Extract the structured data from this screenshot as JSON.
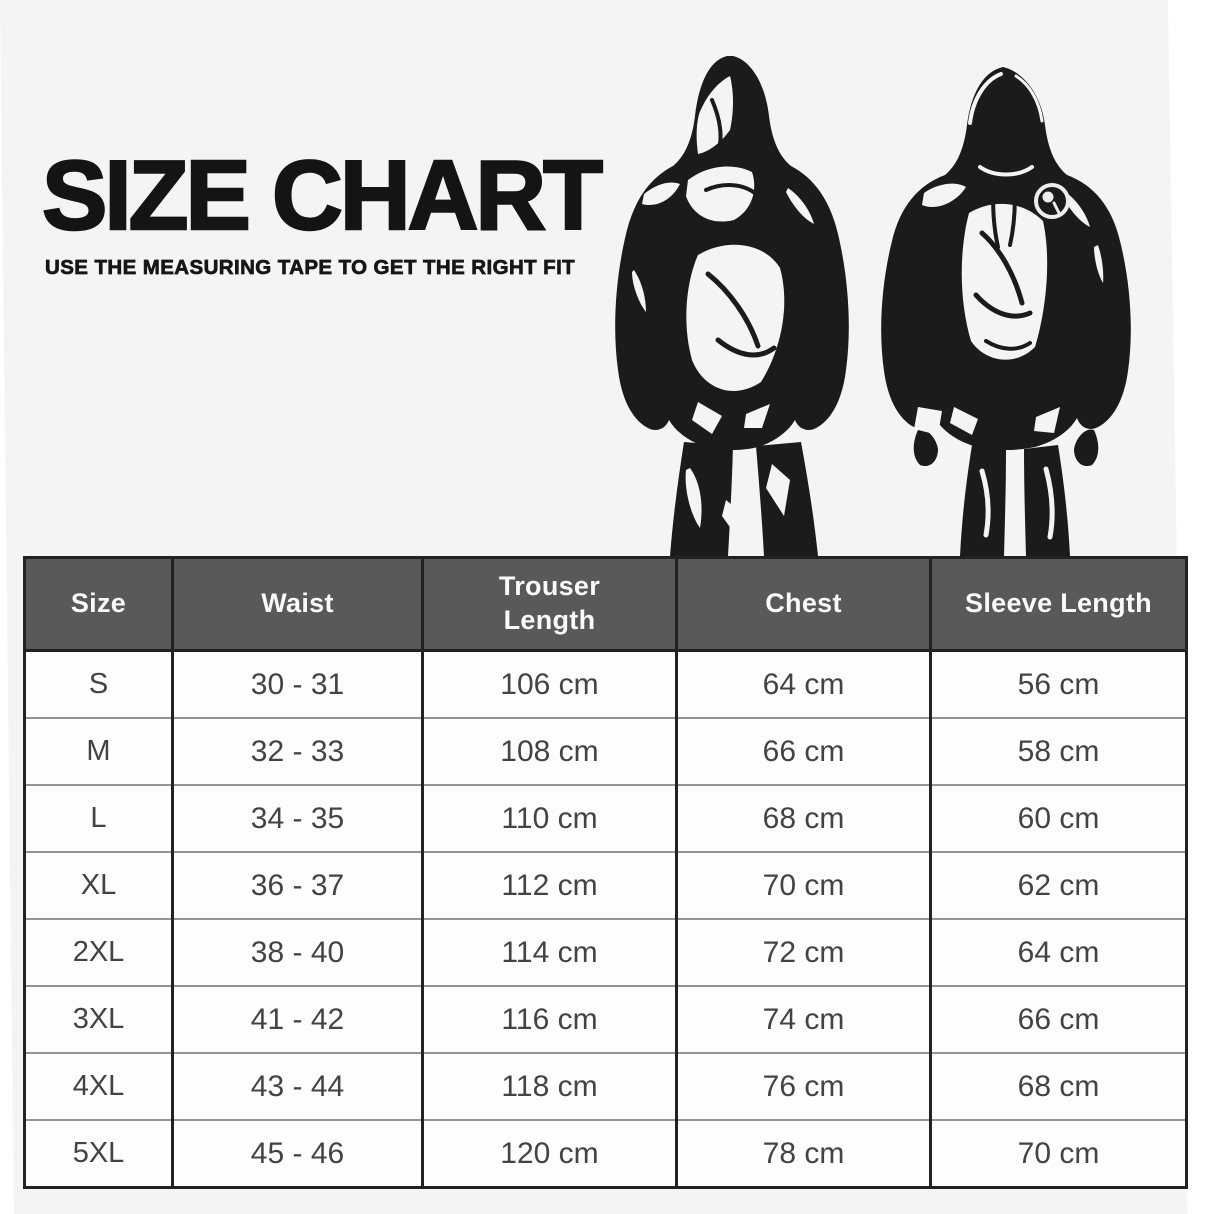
{
  "page": {
    "title": "SIZE CHART",
    "subtitle": "USE THE MEASURING TAPE TO GET THE RIGHT FIT",
    "background_color": "#f4f4f5",
    "ink_color": "#1b1b1d"
  },
  "illustration": {
    "back_figure": "hooded tracksuit, back view, hands tucked",
    "front_figure": "hooded tracksuit, front view, round chest badge"
  },
  "table_style": {
    "header_bg": "#58595b",
    "header_text_color": "#fafafa",
    "row_bg": "#fdfdfd",
    "row_text_color": "#434345",
    "grid_dark": "#222224",
    "grid_light": "#949496"
  },
  "chart_data": {
    "type": "table",
    "title": "SIZE CHART",
    "columns": [
      "Size",
      "Waist",
      "Trouser Length",
      "Chest",
      "Sleeve Length"
    ],
    "rows": [
      [
        "S",
        "30 - 31",
        "106 cm",
        "64 cm",
        "56 cm"
      ],
      [
        "M",
        "32 - 33",
        "108 cm",
        "66 cm",
        "58 cm"
      ],
      [
        "L",
        "34 - 35",
        "110 cm",
        "68 cm",
        "60 cm"
      ],
      [
        "XL",
        "36 - 37",
        "112 cm",
        "70 cm",
        "62 cm"
      ],
      [
        "2XL",
        "38 - 40",
        "114 cm",
        "72 cm",
        "64 cm"
      ],
      [
        "3XL",
        "41 - 42",
        "116 cm",
        "74 cm",
        "66 cm"
      ],
      [
        "4XL",
        "43 - 44",
        "118 cm",
        "76 cm",
        "68 cm"
      ],
      [
        "5XL",
        "45 - 46",
        "120 cm",
        "78 cm",
        "70 cm"
      ]
    ]
  }
}
